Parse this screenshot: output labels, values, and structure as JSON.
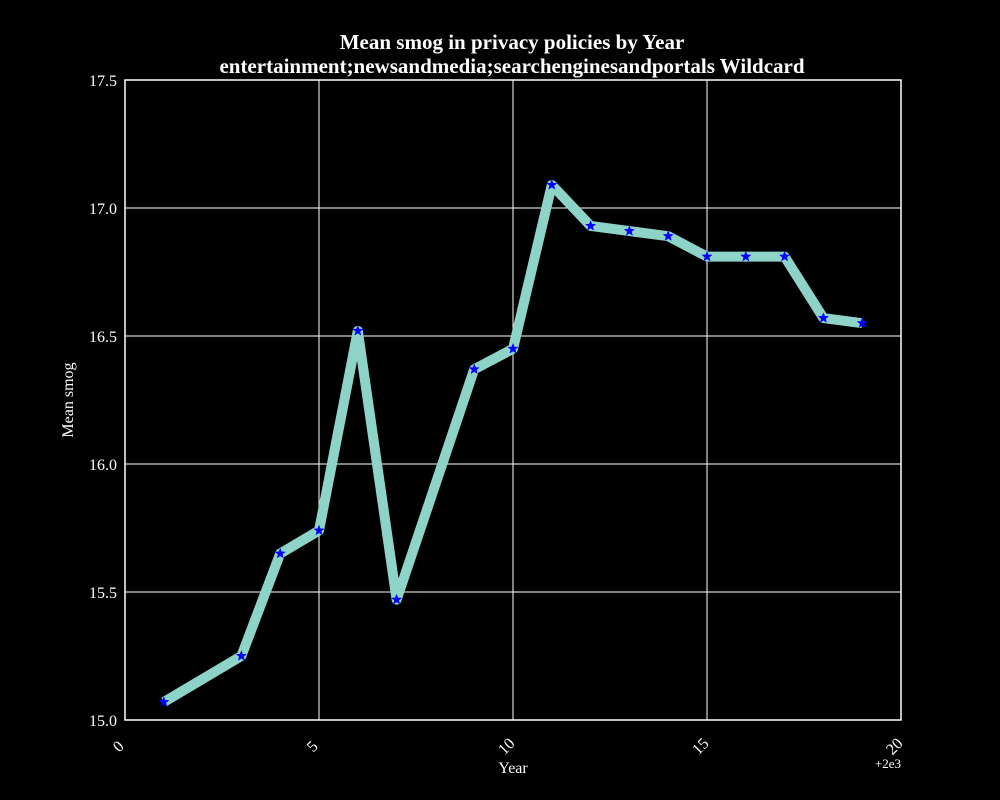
{
  "chart_data": {
    "type": "line",
    "title": "Mean smog in privacy policies by Year",
    "subtitle": "entertainment;newsandmedia;searchenginesandportals Wildcard",
    "xlabel": "Year",
    "ylabel": "Mean smog",
    "x_offset_label": "+2e3",
    "xlim": [
      0,
      20
    ],
    "ylim": [
      15.0,
      17.5
    ],
    "x_ticks": [
      0,
      5,
      10,
      15,
      20
    ],
    "x_tick_labels": [
      "0",
      "5",
      "10",
      "15",
      "20"
    ],
    "y_ticks": [
      15.0,
      15.5,
      16.0,
      16.5,
      17.0,
      17.5
    ],
    "y_tick_labels": [
      "15.0",
      "15.5",
      "16.0",
      "16.5",
      "17.0",
      "17.5"
    ],
    "grid": true,
    "series": [
      {
        "x": [
          1,
          3,
          4,
          5,
          6,
          7,
          9,
          10,
          11,
          12,
          13,
          14,
          15,
          16,
          17,
          18,
          19
        ],
        "values": [
          15.07,
          15.25,
          15.65,
          15.74,
          16.52,
          15.47,
          16.37,
          16.45,
          17.09,
          16.93,
          16.91,
          16.89,
          16.81,
          16.81,
          16.81,
          16.57,
          16.55
        ],
        "line_color": "#8dd3c7",
        "marker_color": "#0000ff",
        "marker": "star"
      }
    ],
    "colors": {
      "background": "#000000",
      "axes": "#ffffff",
      "grid": "#ffffff",
      "text": "#ffffff"
    }
  }
}
